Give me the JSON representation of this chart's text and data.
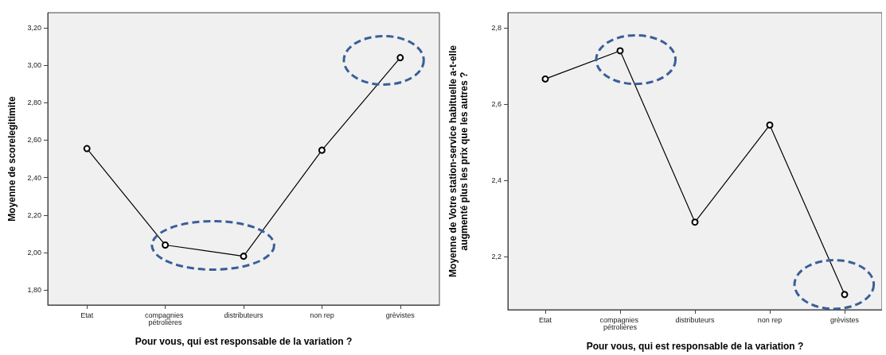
{
  "chart_data": [
    {
      "type": "line",
      "xlabel": "Pour vous, qui est responsable de la variation ?",
      "ylabel": "Moyenne de scorelegitimite",
      "categories": [
        "Etat",
        "compagnies pétrolières",
        "distributeurs",
        "non rep",
        "grèvistes"
      ],
      "series": [
        {
          "color": "#000000",
          "values": [
            2.555,
            2.04,
            1.98,
            2.546,
            3.04
          ]
        }
      ],
      "ylim": [
        1.72,
        3.28
      ],
      "yticks": [
        {
          "value": 1.8,
          "label": "1,80"
        },
        {
          "value": 2.0,
          "label": "2,00"
        },
        {
          "value": 2.2,
          "label": "2,20"
        },
        {
          "value": 2.4,
          "label": "2,40"
        },
        {
          "value": 2.6,
          "label": "2,60"
        },
        {
          "value": 2.8,
          "label": "2,80"
        },
        {
          "value": 3.0,
          "label": "3,00"
        },
        {
          "value": 3.2,
          "label": "3,20"
        }
      ],
      "grid": false,
      "marker": "circle",
      "line_style": "solid"
    },
    {
      "type": "line",
      "xlabel": "Pour vous, qui est responsable de la variation ?",
      "ylabel": "Moyenne de Votre station-service habituelle a-t-elle augmenté plus les prix que les autres ?",
      "categories": [
        "Etat",
        "compagnies pétrolières",
        "distributeurs",
        "non rep",
        "grèvistes"
      ],
      "series": [
        {
          "color": "#000000",
          "values": [
            2.666,
            2.74,
            2.29,
            2.545,
            2.1
          ]
        }
      ],
      "ylim": [
        2.06,
        2.84
      ],
      "yticks": [
        {
          "value": 2.2,
          "label": "2,2"
        },
        {
          "value": 2.4,
          "label": "2,4"
        },
        {
          "value": 2.6,
          "label": "2,6"
        },
        {
          "value": 2.8,
          "label": "2,8"
        }
      ],
      "grid": false,
      "marker": "circle",
      "line_style": "solid"
    }
  ]
}
